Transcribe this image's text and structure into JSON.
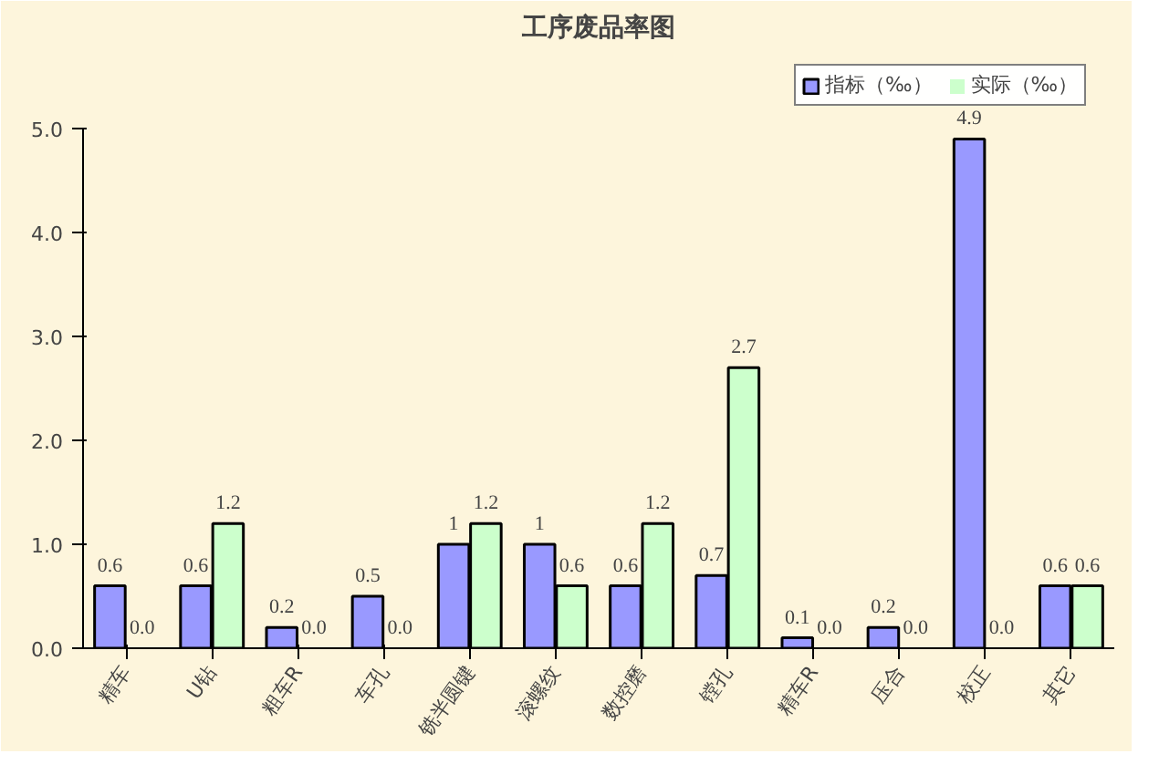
{
  "chart_data": {
    "type": "bar",
    "title": "工序废品率图",
    "categories": [
      "精车",
      "U钻",
      "粗车R",
      "车孔",
      "铣半圆键",
      "滚螺纹",
      "数控磨",
      "镗孔",
      "精车R",
      "压合",
      "校正",
      "其它"
    ],
    "series": [
      {
        "name": "指标（‰）",
        "color": "#9999ff",
        "values": [
          0.6,
          0.6,
          0.2,
          0.5,
          1,
          1,
          0.6,
          0.7,
          0.1,
          0.2,
          4.9,
          0.6
        ],
        "value_labels": [
          "0.6",
          "0.6",
          "0.2",
          "0.5",
          "1",
          "1",
          "0.6",
          "0.7",
          "0.1",
          "0.2",
          "4.9",
          "0.6"
        ]
      },
      {
        "name": "实际（‰）",
        "color": "#ccffcc",
        "values": [
          0.0,
          1.2,
          0.0,
          0.0,
          1.2,
          0.6,
          1.2,
          2.7,
          0.0,
          0.0,
          0.0,
          0.6
        ],
        "value_labels": [
          "0.0",
          "1.2",
          "0.0",
          "0.0",
          "1.2",
          "0.6",
          "1.2",
          "2.7",
          "0.0",
          "0.0",
          "0.0",
          "0.6"
        ]
      }
    ],
    "ylim": [
      0,
      5.0
    ],
    "yticks": [
      {
        "value": 0,
        "label": "0.0"
      },
      {
        "value": 1,
        "label": "1.0"
      },
      {
        "value": 2,
        "label": "2.0"
      },
      {
        "value": 3,
        "label": "3.0"
      },
      {
        "value": 4,
        "label": "4.0"
      },
      {
        "value": 5,
        "label": "5.0"
      }
    ],
    "grid": false,
    "legend": "top right"
  }
}
